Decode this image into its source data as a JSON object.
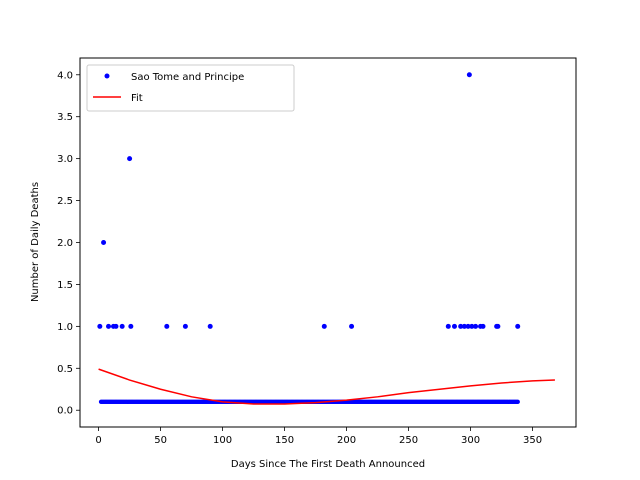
{
  "chart_data": {
    "type": "scatter",
    "title": "",
    "xlabel": "Days Since The First Death Announced",
    "ylabel": "Number of Daily Deaths",
    "xlim": [
      -15,
      385
    ],
    "ylim": [
      -0.2,
      4.2
    ],
    "xticks": [
      0,
      50,
      100,
      150,
      200,
      250,
      300,
      350
    ],
    "yticks": [
      0.0,
      0.5,
      1.0,
      1.5,
      2.0,
      2.5,
      3.0,
      3.5,
      4.0
    ],
    "ytick_labels": [
      "0.0",
      "0.5",
      "1.0",
      "1.5",
      "2.0",
      "2.5",
      "3.0",
      "3.5",
      "4.0"
    ],
    "grid": false,
    "legend_position": "upper-left",
    "legend": [
      {
        "label": "Sao Tome and Principe",
        "kind": "marker",
        "color": "#0000ff"
      },
      {
        "label": "Fit",
        "kind": "line",
        "color": "#ff0000"
      }
    ],
    "series": [
      {
        "name": "Sao Tome and Principe",
        "kind": "scatter",
        "color": "#0000ff",
        "points": [
          [
            1,
            1
          ],
          [
            4,
            2
          ],
          [
            8,
            1
          ],
          [
            12,
            1
          ],
          [
            14,
            1
          ],
          [
            19,
            1
          ],
          [
            25,
            3
          ],
          [
            26,
            1
          ],
          [
            55,
            1
          ],
          [
            70,
            1
          ],
          [
            90,
            1
          ],
          [
            182,
            1
          ],
          [
            204,
            1
          ],
          [
            282,
            1
          ],
          [
            287,
            1
          ],
          [
            292,
            1
          ],
          [
            295,
            1
          ],
          [
            298,
            1
          ],
          [
            299,
            4
          ],
          [
            301,
            1
          ],
          [
            304,
            1
          ],
          [
            308,
            1
          ],
          [
            310,
            1
          ],
          [
            321,
            1
          ],
          [
            322,
            1
          ],
          [
            338,
            1
          ]
        ],
        "baseline_value": 0.1,
        "baseline_x_range": [
          2,
          338
        ]
      },
      {
        "name": "Fit",
        "kind": "line",
        "color": "#ff0000",
        "points": [
          [
            0,
            0.49
          ],
          [
            25,
            0.36
          ],
          [
            50,
            0.25
          ],
          [
            75,
            0.16
          ],
          [
            100,
            0.1
          ],
          [
            125,
            0.075
          ],
          [
            150,
            0.075
          ],
          [
            175,
            0.09
          ],
          [
            200,
            0.12
          ],
          [
            225,
            0.16
          ],
          [
            250,
            0.21
          ],
          [
            275,
            0.25
          ],
          [
            300,
            0.29
          ],
          [
            325,
            0.325
          ],
          [
            350,
            0.35
          ],
          [
            368,
            0.36
          ]
        ]
      }
    ]
  }
}
